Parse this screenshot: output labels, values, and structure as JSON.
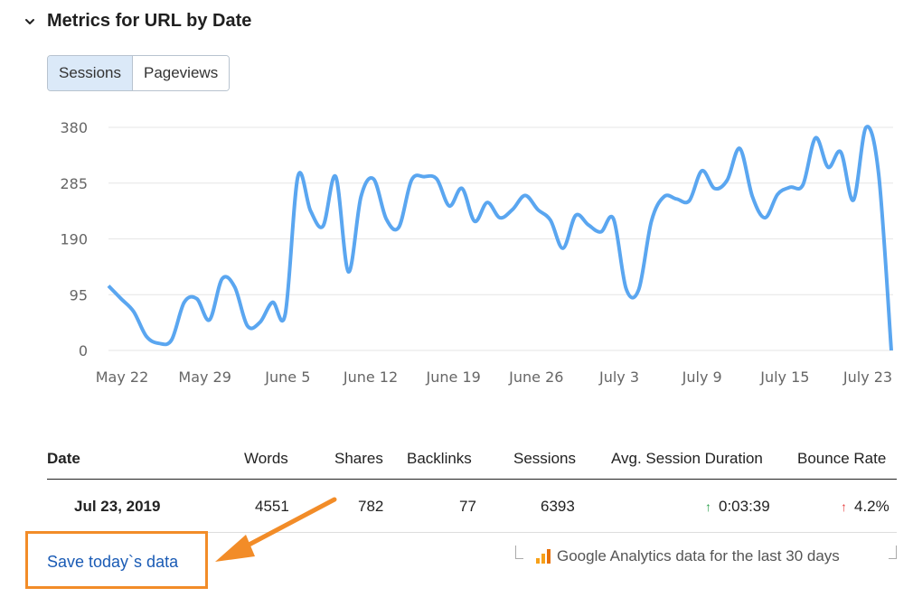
{
  "header": {
    "title": "Metrics for URL by Date",
    "chevron_icon": "chevron-down-icon"
  },
  "toggle": {
    "sessions_label": "Sessions",
    "pageviews_label": "Pageviews",
    "selected": "Sessions"
  },
  "chart_data": {
    "type": "line",
    "series": [
      {
        "color": "#5aa6f0",
        "values": [
          110,
          88,
          66,
          24,
          12,
          18,
          82,
          88,
          52,
          122,
          108,
          42,
          48,
          82,
          62,
          296,
          238,
          212,
          296,
          134,
          262,
          292,
          224,
          210,
          290,
          296,
          292,
          246,
          276,
          220,
          252,
          226,
          240,
          264,
          240,
          222,
          174,
          230,
          214,
          202,
          224,
          105,
          104,
          220,
          262,
          258,
          255,
          306,
          276,
          290,
          344,
          262,
          226,
          266,
          278,
          282,
          362,
          312,
          338,
          256,
          380,
          300,
          0
        ]
      }
    ],
    "x_tick_labels": [
      "May 22",
      "May 29",
      "June 5",
      "June 12",
      "June 19",
      "June 26",
      "July 3",
      "July 9",
      "July 15",
      "July 23"
    ],
    "y_ticks": [
      0,
      95,
      190,
      285,
      380
    ],
    "ylim": [
      0,
      380
    ],
    "grid": true
  },
  "table": {
    "columns": [
      "Date",
      "Words",
      "Shares",
      "Backlinks",
      "Sessions",
      "Avg. Session Duration",
      "Bounce Rate"
    ],
    "row": {
      "date": "Jul 23, 2019",
      "words": "4551",
      "shares": "782",
      "backlinks": "77",
      "sessions": "6393",
      "avg_session_duration": "0:03:39",
      "bounce_rate": "4.2%"
    }
  },
  "footer": {
    "save_link": "Save today`s data",
    "ga_note": "Google Analytics data for the last 30 days",
    "ga_icon": "google-analytics-icon"
  },
  "colors": {
    "line": "#5aa6f0",
    "highlight": "#f28c28",
    "link": "#1a5bb5",
    "up_green": "#2aa14a",
    "up_red": "#e64343"
  }
}
